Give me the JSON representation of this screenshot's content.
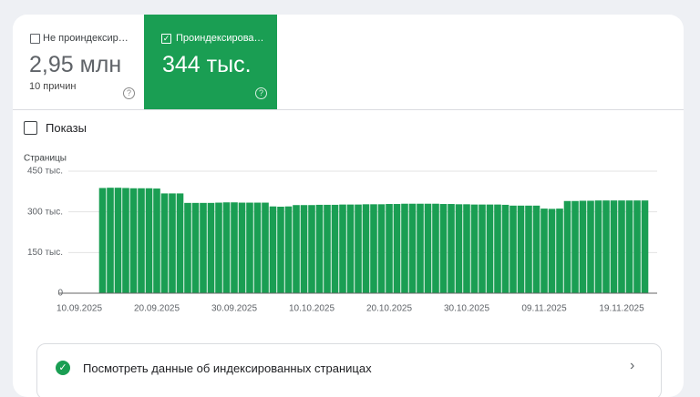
{
  "tabs": [
    {
      "label": "Не проиндексир…",
      "value": "2,95 млн",
      "note": "10 причин"
    },
    {
      "label": "Проиндексирова…",
      "value": "344 тыс."
    }
  ],
  "impressions_checkbox": "Показы",
  "chart_data": {
    "type": "bar",
    "ylabel": "Страницы",
    "categories": [
      "10.09.2025",
      null,
      null,
      null,
      null,
      null,
      null,
      null,
      null,
      null,
      "20.09.2025",
      null,
      null,
      null,
      null,
      null,
      null,
      null,
      null,
      null,
      "30.09.2025",
      null,
      null,
      null,
      null,
      null,
      null,
      null,
      null,
      null,
      "10.10.2025",
      null,
      null,
      null,
      null,
      null,
      null,
      null,
      null,
      null,
      "20.10.2025",
      null,
      null,
      null,
      null,
      null,
      null,
      null,
      null,
      null,
      "30.10.2025",
      null,
      null,
      null,
      null,
      null,
      null,
      null,
      null,
      null,
      "09.11.2025",
      null,
      null,
      null,
      null,
      null,
      null,
      null,
      null,
      null,
      "19.11.2025",
      null,
      null,
      null
    ],
    "values": [
      null,
      null,
      null,
      388,
      389,
      389,
      388,
      387,
      387,
      387,
      386,
      368,
      368,
      368,
      333,
      333,
      333,
      333,
      334,
      335,
      335,
      334,
      334,
      334,
      334,
      320,
      319,
      320,
      325,
      325,
      325,
      326,
      326,
      326,
      327,
      327,
      327,
      328,
      328,
      328,
      329,
      329,
      330,
      330,
      330,
      330,
      330,
      329,
      329,
      328,
      328,
      327,
      327,
      327,
      327,
      326,
      323,
      323,
      323,
      323,
      312,
      311,
      312,
      340,
      340,
      341,
      341,
      342,
      342,
      342,
      342,
      342,
      342,
      342
    ],
    "color": "#1a9e53",
    "ylim": [
      0,
      450
    ],
    "yticks": [
      0,
      {
        "value": 150,
        "label": "150 тыс."
      },
      {
        "value": 300,
        "label": "300 тыс."
      },
      {
        "value": 450,
        "label": "450 тыс."
      }
    ],
    "grid": true
  },
  "link": "Посмотреть данные об индексированных страницах"
}
